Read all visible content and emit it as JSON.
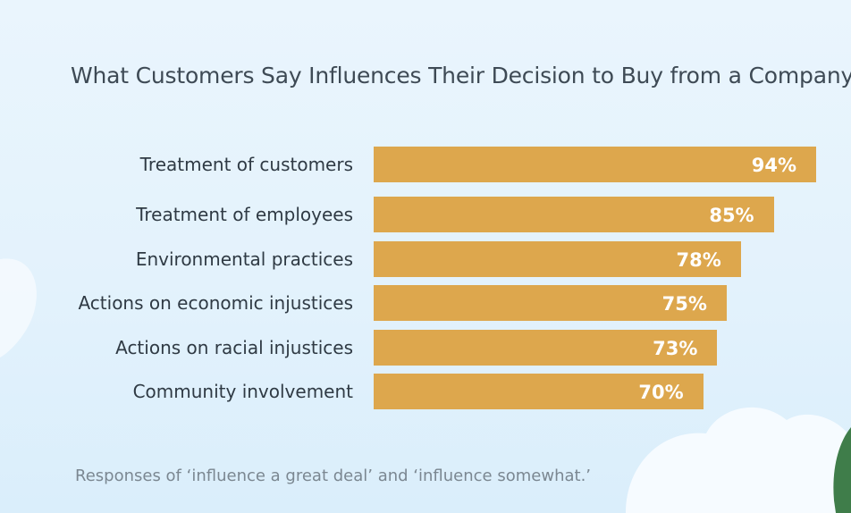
{
  "chart_data": {
    "type": "bar",
    "orientation": "horizontal",
    "title": "What Customers Say Influences Their Decision to Buy from a Company",
    "categories": [
      "Treatment of customers",
      "Treatment of employees",
      "Environmental practices",
      "Actions on economic injustices",
      "Actions on racial injustices",
      "Community involvement"
    ],
    "values": [
      94,
      85,
      78,
      75,
      73,
      70
    ],
    "value_labels": [
      "94%",
      "85%",
      "78%",
      "75%",
      "73%",
      "70%"
    ],
    "unit": "%",
    "xlim": [
      0,
      100
    ],
    "grid": false,
    "bar_color": "#dda74d",
    "footnote": "Responses of ‘influence a great deal’ and ‘influence somewhat.’"
  },
  "colors": {
    "background": "#e3f2fc",
    "cloud": "#ffffff",
    "tree": "#3f7d4a"
  }
}
